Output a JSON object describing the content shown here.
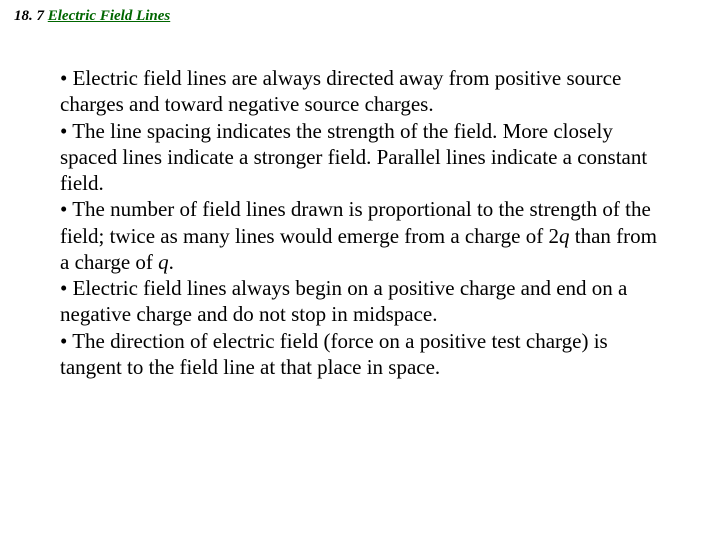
{
  "header": {
    "section_num": "18. 7 ",
    "section_title": "Electric Field Lines"
  },
  "content": {
    "b1_prefix": "• ",
    "b1_text": "Electric field lines are always directed away from positive source charges and toward negative source charges.",
    "b2_prefix": "• ",
    "b2_text": "The line spacing indicates the strength of the field.  More closely spaced lines indicate a stronger field.  Parallel lines indicate a constant field.",
    "b3_prefix": "• ",
    "b3_a": "The number of field lines drawn is proportional to the strength of the field; twice as many lines would emerge from a charge of 2",
    "b3_q1": "q",
    "b3_b": " than from a charge of ",
    "b3_q2": "q",
    "b3_c": ".",
    "b4_prefix": "• ",
    "b4_text": "Electric field lines always begin on a positive charge and end on a negative charge and do not stop in midspace.",
    "b5_prefix": "• ",
    "b5_text": "The direction of electric field (force on a positive test charge) is tangent to the field line at that place in space."
  }
}
